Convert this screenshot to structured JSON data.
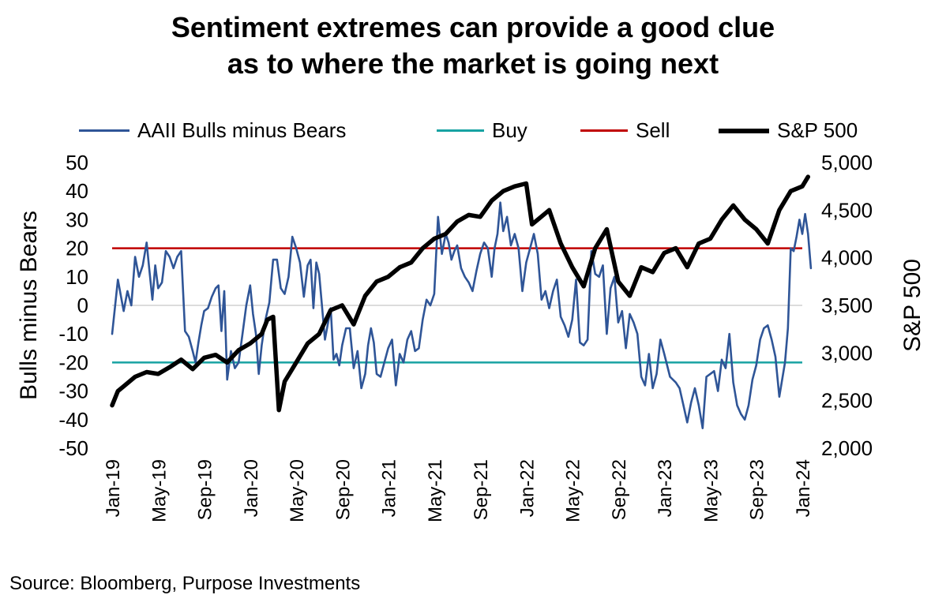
{
  "title_line1": "Sentiment extremes can provide a good clue",
  "title_line2": "as to where the market is going next",
  "source": "Source: Bloomberg, Purpose Investments",
  "colors": {
    "aaii": "#2f5597",
    "buy": "#17a2a2",
    "sell": "#c00000",
    "sp500": "#000000",
    "zero_line": "#c8c8c8"
  },
  "chart_data": {
    "type": "line",
    "ylabel": "Bulls minus Bears",
    "y2label": "S&P 500",
    "ylim": [
      -50,
      50
    ],
    "y2lim": [
      2000,
      5000
    ],
    "xlim": [
      "2019-01",
      "2024-01"
    ],
    "y_ticks": [
      "50",
      "40",
      "30",
      "20",
      "10",
      "0",
      "-10",
      "-20",
      "-30",
      "-40",
      "-50"
    ],
    "y2_ticks": [
      "5,000",
      "4,500",
      "4,000",
      "3,500",
      "3,000",
      "2,500",
      "2,000"
    ],
    "x_ticks": [
      "Jan-19",
      "May-19",
      "Sep-19",
      "Jan-20",
      "May-20",
      "Sep-20",
      "Jan-21",
      "May-21",
      "Sep-21",
      "Jan-22",
      "May-22",
      "Sep-22",
      "Jan-23",
      "May-23",
      "Sep-23",
      "Jan-24"
    ],
    "legend": [
      "AAII Bulls minus Bears",
      "Buy",
      "Sell",
      "S&P 500"
    ],
    "legend_position": "top",
    "reference_lines": [
      {
        "name": "Buy",
        "axis": "left",
        "value": -20
      },
      {
        "name": "Sell",
        "axis": "left",
        "value": 20
      }
    ],
    "series": [
      {
        "name": "AAII Bulls minus Bears",
        "axis": "left",
        "points": [
          [
            "2019-01",
            -10
          ],
          [
            "2019-01",
            9
          ],
          [
            "2019-02",
            -2
          ],
          [
            "2019-02",
            5
          ],
          [
            "2019-02",
            0
          ],
          [
            "2019-03",
            17
          ],
          [
            "2019-03",
            10
          ],
          [
            "2019-03",
            14
          ],
          [
            "2019-04",
            22
          ],
          [
            "2019-04",
            12
          ],
          [
            "2019-04",
            2
          ],
          [
            "2019-04",
            14
          ],
          [
            "2019-05",
            6
          ],
          [
            "2019-05",
            8
          ],
          [
            "2019-05",
            19
          ],
          [
            "2019-06",
            17
          ],
          [
            "2019-06",
            13
          ],
          [
            "2019-06",
            17
          ],
          [
            "2019-07",
            19
          ],
          [
            "2019-07",
            -9
          ],
          [
            "2019-07",
            -11
          ],
          [
            "2019-08",
            -16
          ],
          [
            "2019-08",
            -20
          ],
          [
            "2019-08",
            -13
          ],
          [
            "2019-08",
            -7
          ],
          [
            "2019-09",
            -2
          ],
          [
            "2019-09",
            -1
          ],
          [
            "2019-09",
            3
          ],
          [
            "2019-10",
            6
          ],
          [
            "2019-10",
            7
          ],
          [
            "2019-10",
            -9
          ],
          [
            "2019-10",
            5
          ],
          [
            "2019-11",
            -26
          ],
          [
            "2019-11",
            -16
          ],
          [
            "2019-11",
            -22
          ],
          [
            "2019-12",
            -20
          ],
          [
            "2019-12",
            -10
          ],
          [
            "2019-12",
            0
          ],
          [
            "2020-01",
            7
          ],
          [
            "2020-01",
            -3
          ],
          [
            "2020-01",
            -10
          ],
          [
            "2020-01",
            -24
          ],
          [
            "2020-02",
            -14
          ],
          [
            "2020-02",
            -5
          ],
          [
            "2020-02",
            1
          ],
          [
            "2020-03",
            16
          ],
          [
            "2020-03",
            16
          ],
          [
            "2020-03",
            6
          ],
          [
            "2020-04",
            4
          ],
          [
            "2020-04",
            10
          ],
          [
            "2020-04",
            24
          ],
          [
            "2020-05",
            20
          ],
          [
            "2020-05",
            15
          ],
          [
            "2020-05",
            3
          ],
          [
            "2020-06",
            14
          ],
          [
            "2020-06",
            16
          ],
          [
            "2020-06",
            -1
          ],
          [
            "2020-06",
            15
          ],
          [
            "2020-07",
            11
          ],
          [
            "2020-07",
            -12
          ],
          [
            "2020-08",
            -1
          ],
          [
            "2020-08",
            -19
          ],
          [
            "2020-08",
            -17
          ],
          [
            "2020-08",
            -21
          ],
          [
            "2020-09",
            -14
          ],
          [
            "2020-09",
            -8
          ],
          [
            "2020-09",
            -8
          ],
          [
            "2020-10",
            -22
          ],
          [
            "2020-10",
            -16
          ],
          [
            "2020-10",
            -29
          ],
          [
            "2020-11",
            -24
          ],
          [
            "2020-11",
            -14
          ],
          [
            "2020-11",
            -8
          ],
          [
            "2020-11",
            -13
          ],
          [
            "2020-12",
            -24
          ],
          [
            "2020-12",
            -25
          ],
          [
            "2020-12",
            -20
          ],
          [
            "2021-01",
            -15
          ],
          [
            "2021-01",
            -12
          ],
          [
            "2021-01",
            -28
          ],
          [
            "2021-02",
            -17
          ],
          [
            "2021-02",
            -20
          ],
          [
            "2021-02",
            -12
          ],
          [
            "2021-03",
            -9
          ],
          [
            "2021-03",
            -16
          ],
          [
            "2021-03",
            -15
          ],
          [
            "2021-04",
            -5
          ],
          [
            "2021-04",
            2
          ],
          [
            "2021-04",
            0
          ],
          [
            "2021-05",
            4
          ],
          [
            "2021-05",
            31
          ],
          [
            "2021-05",
            18
          ],
          [
            "2021-06",
            25
          ],
          [
            "2021-06",
            22
          ],
          [
            "2021-06",
            16
          ],
          [
            "2021-06",
            19
          ],
          [
            "2021-07",
            21
          ],
          [
            "2021-07",
            13
          ],
          [
            "2021-07",
            10
          ],
          [
            "2021-08",
            8
          ],
          [
            "2021-08",
            5
          ],
          [
            "2021-08",
            12
          ],
          [
            "2021-09",
            18
          ],
          [
            "2021-09",
            22
          ],
          [
            "2021-09",
            20
          ],
          [
            "2021-10",
            10
          ],
          [
            "2021-10",
            20
          ],
          [
            "2021-10",
            25
          ],
          [
            "2021-10",
            36
          ],
          [
            "2021-11",
            26
          ],
          [
            "2021-11",
            31
          ],
          [
            "2021-11",
            21
          ],
          [
            "2021-12",
            25
          ],
          [
            "2021-12",
            20
          ],
          [
            "2021-12",
            5
          ],
          [
            "2022-01",
            15
          ],
          [
            "2022-01",
            20
          ],
          [
            "2022-01",
            25
          ],
          [
            "2022-02",
            18
          ],
          [
            "2022-02",
            2
          ],
          [
            "2022-02",
            5
          ],
          [
            "2022-03",
            -1
          ],
          [
            "2022-03",
            5
          ],
          [
            "2022-03",
            9
          ],
          [
            "2022-04",
            -4
          ],
          [
            "2022-04",
            -7
          ],
          [
            "2022-04",
            -11
          ],
          [
            "2022-05",
            -5
          ],
          [
            "2022-05",
            9
          ],
          [
            "2022-05",
            -13
          ],
          [
            "2022-06",
            -14
          ],
          [
            "2022-06",
            -12
          ],
          [
            "2022-06",
            19
          ],
          [
            "2022-07",
            11
          ],
          [
            "2022-07",
            10
          ],
          [
            "2022-07",
            14
          ],
          [
            "2022-08",
            -10
          ],
          [
            "2022-08",
            6
          ],
          [
            "2022-08",
            10
          ],
          [
            "2022-09",
            -6
          ],
          [
            "2022-09",
            -2
          ],
          [
            "2022-09",
            -15
          ],
          [
            "2022-10",
            -3
          ],
          [
            "2022-10",
            -6
          ],
          [
            "2022-10",
            -10
          ],
          [
            "2022-11",
            -25
          ],
          [
            "2022-11",
            -28
          ],
          [
            "2022-11",
            -17
          ],
          [
            "2022-12",
            -29
          ],
          [
            "2022-12",
            -24
          ],
          [
            "2022-12",
            -12
          ],
          [
            "2023-01",
            -17
          ],
          [
            "2023-01",
            -25
          ],
          [
            "2023-02",
            -27
          ],
          [
            "2023-02",
            -29
          ],
          [
            "2023-02",
            -35
          ],
          [
            "2023-03",
            -41
          ],
          [
            "2023-03",
            -34
          ],
          [
            "2023-03",
            -29
          ],
          [
            "2023-04",
            -35
          ],
          [
            "2023-04",
            -43
          ],
          [
            "2023-04",
            -25
          ],
          [
            "2023-05",
            -24
          ],
          [
            "2023-05",
            -23
          ],
          [
            "2023-05",
            -30
          ],
          [
            "2023-06",
            -19
          ],
          [
            "2023-06",
            -22
          ],
          [
            "2023-06",
            -10
          ],
          [
            "2023-07",
            -27
          ],
          [
            "2023-07",
            -35
          ],
          [
            "2023-07",
            -38
          ],
          [
            "2023-08",
            -40
          ],
          [
            "2023-08",
            -35
          ],
          [
            "2023-08",
            -26
          ],
          [
            "2023-09",
            -21
          ],
          [
            "2023-09",
            -12
          ],
          [
            "2023-09",
            -8
          ],
          [
            "2023-10",
            -7
          ],
          [
            "2023-10",
            -12
          ],
          [
            "2023-10",
            -18
          ],
          [
            "2023-11",
            -32
          ],
          [
            "2023-11",
            -26
          ],
          [
            "2023-11",
            -20
          ],
          [
            "2023-11",
            -8
          ],
          [
            "2023-12",
            20
          ],
          [
            "2023-12",
            19
          ],
          [
            "2023-12",
            24
          ],
          [
            "2023-12",
            30
          ],
          [
            "2024-01",
            25
          ],
          [
            "2024-01",
            32
          ],
          [
            "2024-01",
            25
          ],
          [
            "2024-01",
            13
          ]
        ]
      },
      {
        "name": "S&P 500",
        "axis": "right",
        "points": [
          [
            "2019-01",
            2450
          ],
          [
            "2019-01",
            2600
          ],
          [
            "2019-02",
            2650
          ],
          [
            "2019-03",
            2750
          ],
          [
            "2019-04",
            2800
          ],
          [
            "2019-05",
            2780
          ],
          [
            "2019-06",
            2850
          ],
          [
            "2019-07",
            2930
          ],
          [
            "2019-08",
            2830
          ],
          [
            "2019-09",
            2950
          ],
          [
            "2019-10",
            2980
          ],
          [
            "2019-11",
            2900
          ],
          [
            "2019-12",
            3030
          ],
          [
            "2020-01",
            3100
          ],
          [
            "2020-02",
            3200
          ],
          [
            "2020-02",
            3350
          ],
          [
            "2020-03",
            3380
          ],
          [
            "2020-03",
            2400
          ],
          [
            "2020-04",
            2700
          ],
          [
            "2020-05",
            2900
          ],
          [
            "2020-06",
            3100
          ],
          [
            "2020-07",
            3200
          ],
          [
            "2020-08",
            3450
          ],
          [
            "2020-09",
            3500
          ],
          [
            "2020-10",
            3300
          ],
          [
            "2020-11",
            3600
          ],
          [
            "2020-12",
            3750
          ],
          [
            "2021-01",
            3800
          ],
          [
            "2021-02",
            3900
          ],
          [
            "2021-03",
            3950
          ],
          [
            "2021-04",
            4100
          ],
          [
            "2021-05",
            4200
          ],
          [
            "2021-06",
            4250
          ],
          [
            "2021-07",
            4380
          ],
          [
            "2021-08",
            4450
          ],
          [
            "2021-09",
            4430
          ],
          [
            "2021-10",
            4600
          ],
          [
            "2021-11",
            4700
          ],
          [
            "2021-12",
            4750
          ],
          [
            "2022-01",
            4780
          ],
          [
            "2022-01",
            4350
          ],
          [
            "2022-02",
            4400
          ],
          [
            "2022-03",
            4500
          ],
          [
            "2022-04",
            4150
          ],
          [
            "2022-05",
            3900
          ],
          [
            "2022-06",
            3700
          ],
          [
            "2022-07",
            4100
          ],
          [
            "2022-08",
            4300
          ],
          [
            "2022-09",
            3750
          ],
          [
            "2022-10",
            3600
          ],
          [
            "2022-11",
            3900
          ],
          [
            "2022-12",
            3850
          ],
          [
            "2023-01",
            4050
          ],
          [
            "2023-02",
            4100
          ],
          [
            "2023-03",
            3900
          ],
          [
            "2023-04",
            4150
          ],
          [
            "2023-05",
            4200
          ],
          [
            "2023-06",
            4400
          ],
          [
            "2023-07",
            4550
          ],
          [
            "2023-08",
            4400
          ],
          [
            "2023-09",
            4300
          ],
          [
            "2023-10",
            4150
          ],
          [
            "2023-11",
            4500
          ],
          [
            "2023-12",
            4700
          ],
          [
            "2024-01",
            4750
          ],
          [
            "2024-01",
            4850
          ]
        ]
      }
    ],
    "grid": false
  }
}
